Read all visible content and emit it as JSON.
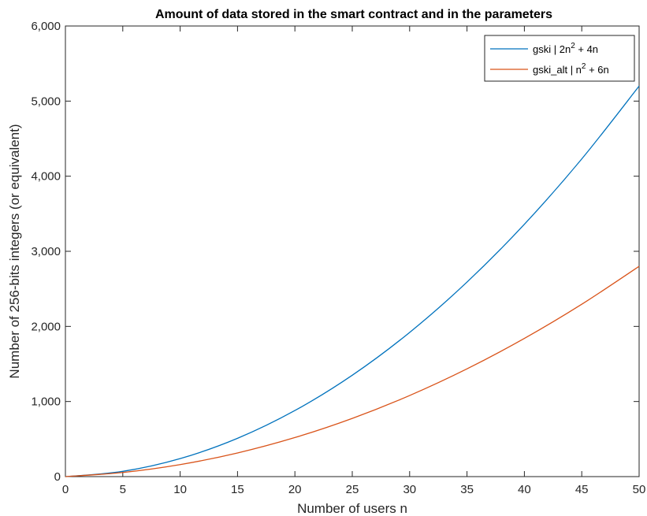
{
  "chart_data": {
    "type": "line",
    "title": "Amount of data stored in the smart contract and in the parameters",
    "xlabel": "Number of users n",
    "ylabel": "Number of 256-bits integers (or equivalent)",
    "xlim": [
      0,
      50
    ],
    "ylim": [
      0,
      6000
    ],
    "x_ticks": [
      0,
      5,
      10,
      15,
      20,
      25,
      30,
      35,
      40,
      45,
      50
    ],
    "x_tick_labels": [
      "0",
      "5",
      "10",
      "15",
      "20",
      "25",
      "30",
      "35",
      "40",
      "45",
      "50"
    ],
    "y_ticks": [
      0,
      1000,
      2000,
      3000,
      4000,
      5000,
      6000
    ],
    "y_tick_labels": [
      "0",
      "1,000",
      "2,000",
      "3,000",
      "4,000",
      "5,000",
      "6,000"
    ],
    "grid": false,
    "legend_position": "top-right",
    "x": [
      0,
      5,
      10,
      15,
      20,
      25,
      30,
      35,
      40,
      45,
      50
    ],
    "series": [
      {
        "name": "gski | 2n² + 4n",
        "legend": {
          "base": "gski | 2n",
          "exp": "2",
          "tail": " + 4n"
        },
        "color": "#0072BD",
        "values": [
          0,
          70,
          240,
          510,
          880,
          1350,
          1920,
          2590,
          3360,
          4230,
          5200
        ]
      },
      {
        "name": "gski_alt | n² + 6n",
        "legend": {
          "base": "gski_alt | n",
          "exp": "2",
          "tail": " + 6n"
        },
        "color": "#D95319",
        "values": [
          0,
          55,
          160,
          315,
          520,
          775,
          1080,
          1435,
          1840,
          2295,
          2800
        ]
      }
    ]
  }
}
